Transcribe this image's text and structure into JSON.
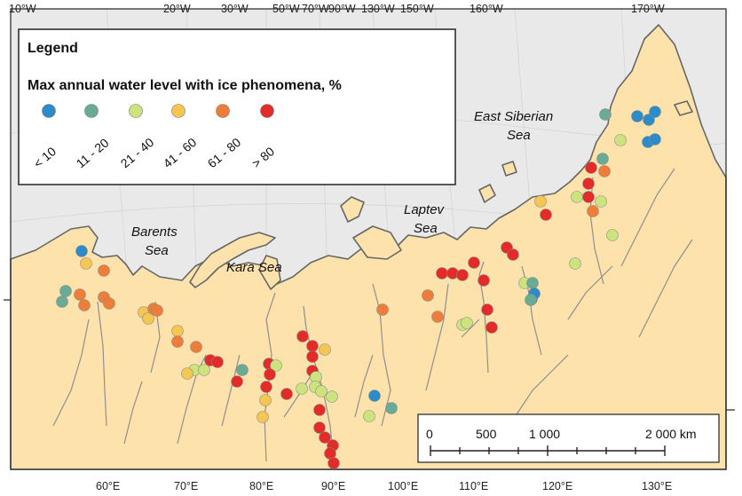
{
  "legend": {
    "title": "Legend",
    "subtitle": "Max annual water level with ice phenomena, %",
    "classes": [
      {
        "label": "< 10",
        "color": "#2e8bc9"
      },
      {
        "label": "11 - 20",
        "color": "#6aab95"
      },
      {
        "label": "21 - 40",
        "color": "#cde47e"
      },
      {
        "label": "41 - 60",
        "color": "#f6c653"
      },
      {
        "label": "61 - 80",
        "color": "#ee7d3a"
      },
      {
        "label": "> 80",
        "color": "#e32b27"
      }
    ]
  },
  "top_longitudes": [
    "10°W",
    "20°W",
    "30°W",
    "50°W",
    "70°W",
    "90°W",
    "130°W",
    "150°W",
    "160°W",
    "170°W"
  ],
  "bottom_longitudes": [
    "60°E",
    "70°E",
    "80°E",
    "90°E",
    "100°E",
    "110°E",
    "120°E",
    "130°E"
  ],
  "seas": [
    {
      "line1": "Barents",
      "line2": "Sea"
    },
    {
      "line1": "Kara Sea",
      "line2": ""
    },
    {
      "line1": "Laptev",
      "line2": "Sea"
    },
    {
      "line1": "East Siberian",
      "line2": "Sea"
    }
  ],
  "scale": {
    "ticks": [
      "0",
      "500",
      "1 000",
      "2 000 km"
    ]
  },
  "colors": {
    "land": "#fde2ac",
    "ocean": "#e9e9e9",
    "coast": "#666666",
    "river": "#8f8f8f"
  }
}
